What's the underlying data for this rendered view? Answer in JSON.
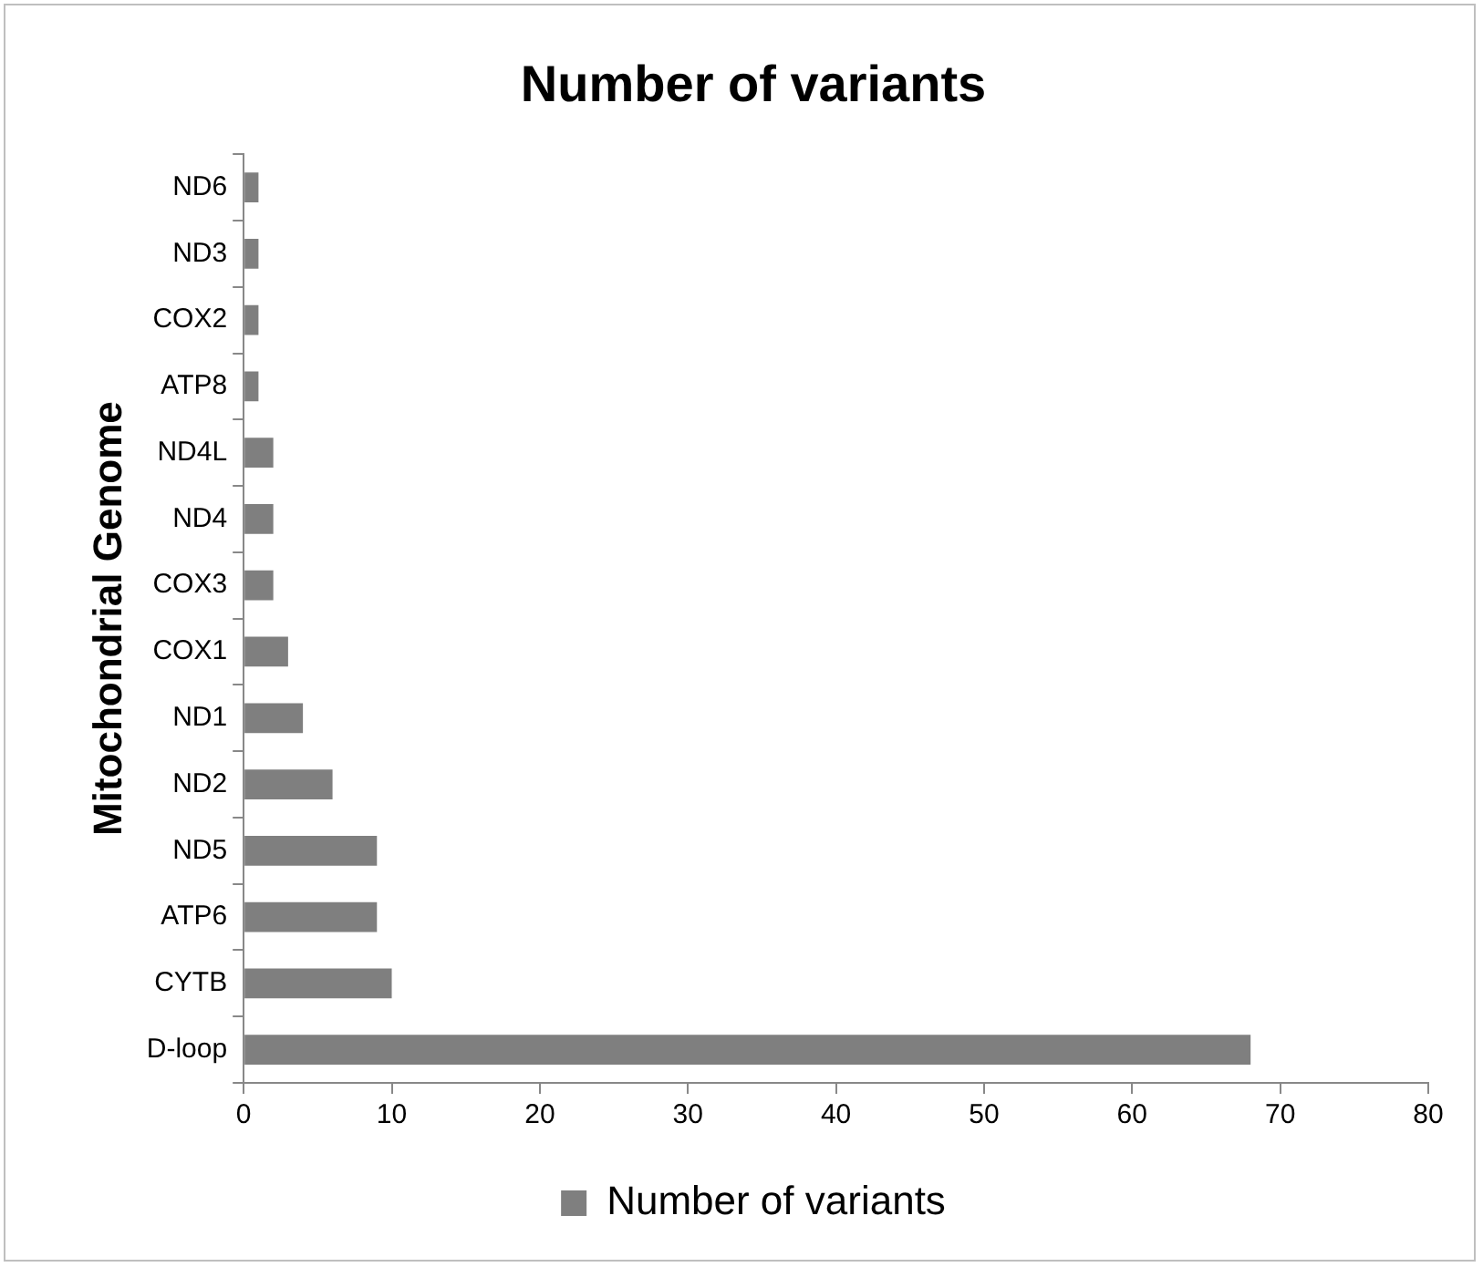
{
  "chart_data": {
    "type": "bar",
    "orientation": "horizontal",
    "title": "Number of variants",
    "ylabel": "Mitochondrial Genome",
    "categories": [
      "ND6",
      "ND3",
      "COX2",
      "ATP8",
      "ND4L",
      "ND4",
      "COX3",
      "COX1",
      "ND1",
      "ND2",
      "ND5",
      "ATP6",
      "CYTB",
      "D-loop"
    ],
    "series": [
      {
        "name": "Number of variants",
        "color": "#7f7f7f",
        "values": [
          1,
          1,
          1,
          1,
          2,
          2,
          2,
          3,
          4,
          6,
          9,
          9,
          10,
          68
        ]
      }
    ],
    "xlim": [
      0,
      80
    ],
    "xticks": [
      0,
      10,
      20,
      30,
      40,
      50,
      60,
      70,
      80
    ],
    "grid": false,
    "legend": "bottom"
  }
}
